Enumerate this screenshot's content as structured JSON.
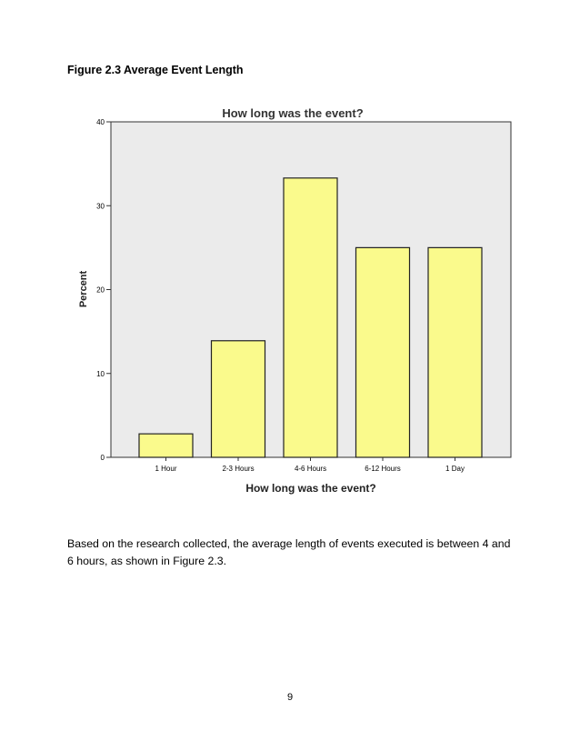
{
  "caption": "Figure 2.3 Average Event Length",
  "body_text": "Based on the research collected, the average length of events executed is between 4 and 6 hours, as shown in Figure 2.3.",
  "page_number": "9",
  "colors": {
    "bar_fill": "#fafa8c",
    "plot_background": "#ebebeb",
    "bar_stroke": "#222222"
  },
  "chart_data": {
    "type": "bar",
    "title": "How long was the event?",
    "xlabel": "How long was the event?",
    "ylabel": "Percent",
    "categories": [
      "1 Hour",
      "2-3 Hours",
      "4-6 Hours",
      "6-12 Hours",
      "1 Day"
    ],
    "values": [
      2.8,
      13.9,
      33.3,
      25.0,
      25.0
    ],
    "ylim": [
      0,
      40
    ],
    "yticks": [
      0,
      10,
      20,
      30,
      40
    ],
    "grid": false,
    "legend": "none"
  }
}
